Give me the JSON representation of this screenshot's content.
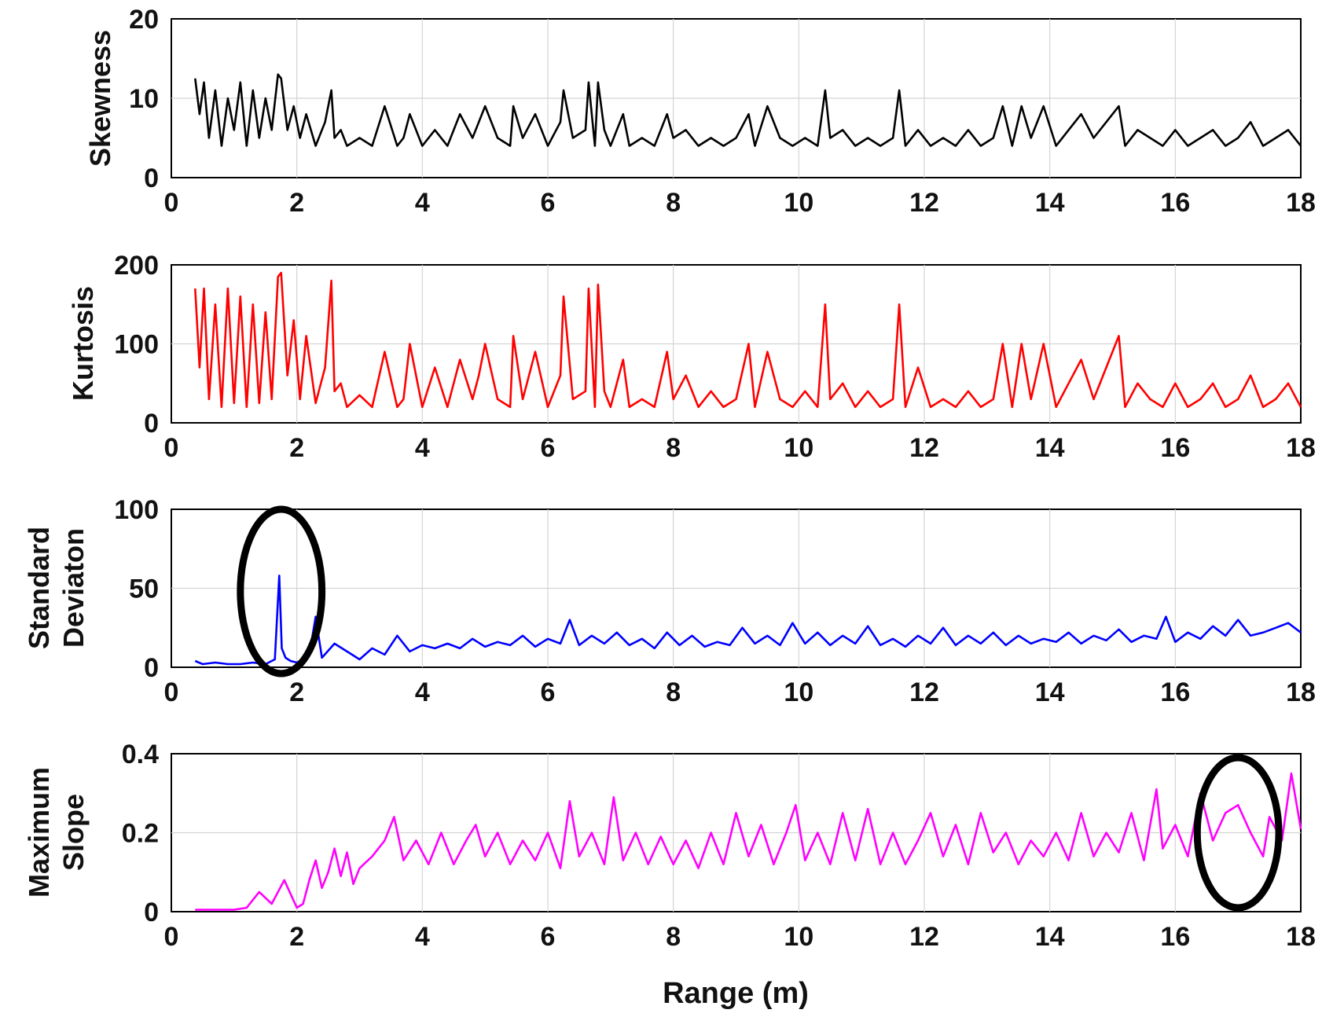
{
  "chart_data": [
    {
      "type": "line",
      "ylabel": "Skewness",
      "ylim": [
        0,
        20
      ],
      "yticks": [
        0,
        10,
        20
      ],
      "xlim": [
        0,
        18
      ],
      "xticks": [
        0,
        2,
        4,
        6,
        8,
        10,
        12,
        14,
        16,
        18
      ],
      "color": "#000000",
      "series": [
        {
          "name": "Skewness",
          "x": [
            0.38,
            0.45,
            0.52,
            0.6,
            0.7,
            0.8,
            0.9,
            1.0,
            1.1,
            1.2,
            1.3,
            1.4,
            1.5,
            1.6,
            1.7,
            1.75,
            1.85,
            1.95,
            2.05,
            2.15,
            2.3,
            2.45,
            2.55,
            2.6,
            2.7,
            2.8,
            3.0,
            3.2,
            3.4,
            3.6,
            3.7,
            3.8,
            4.0,
            4.2,
            4.4,
            4.6,
            4.8,
            4.9,
            5.0,
            5.2,
            5.4,
            5.45,
            5.6,
            5.8,
            6.0,
            6.2,
            6.25,
            6.4,
            6.6,
            6.65,
            6.75,
            6.8,
            6.9,
            7.0,
            7.2,
            7.3,
            7.5,
            7.7,
            7.9,
            8.0,
            8.2,
            8.4,
            8.6,
            8.8,
            9.0,
            9.2,
            9.3,
            9.5,
            9.7,
            9.9,
            10.1,
            10.3,
            10.42,
            10.5,
            10.7,
            10.9,
            11.1,
            11.3,
            11.5,
            11.6,
            11.7,
            11.9,
            12.1,
            12.3,
            12.5,
            12.7,
            12.9,
            13.1,
            13.25,
            13.4,
            13.55,
            13.7,
            13.9,
            14.1,
            14.3,
            14.5,
            14.7,
            14.9,
            15.1,
            15.2,
            15.4,
            15.6,
            15.8,
            16.0,
            16.2,
            16.4,
            16.6,
            16.8,
            17.0,
            17.2,
            17.4,
            17.6,
            17.8,
            18.0
          ],
          "y": [
            12.5,
            8,
            12,
            5,
            11,
            4,
            10,
            6,
            12,
            4,
            11,
            5,
            10,
            6,
            13,
            12.5,
            6,
            9,
            5,
            8,
            4,
            7,
            11,
            5,
            6,
            4,
            5,
            4,
            9,
            4,
            5,
            8,
            4,
            6,
            4,
            8,
            5,
            7,
            9,
            5,
            4,
            9,
            5,
            8,
            4,
            7,
            11,
            5,
            6,
            12,
            4,
            12,
            6,
            4,
            8,
            4,
            5,
            4,
            8,
            5,
            6,
            4,
            5,
            4,
            5,
            8,
            4,
            9,
            5,
            4,
            5,
            4,
            11,
            5,
            6,
            4,
            5,
            4,
            5,
            11,
            4,
            6,
            4,
            5,
            4,
            6,
            4,
            5,
            9,
            4,
            9,
            5,
            9,
            4,
            6,
            8,
            5,
            7,
            9,
            4,
            6,
            5,
            4,
            6,
            4,
            5,
            6,
            4,
            5,
            7,
            4,
            5,
            6,
            4
          ]
        }
      ]
    },
    {
      "type": "line",
      "ylabel": "Kurtosis",
      "ylim": [
        0,
        200
      ],
      "yticks": [
        0,
        100,
        200
      ],
      "xlim": [
        0,
        18
      ],
      "xticks": [
        0,
        2,
        4,
        6,
        8,
        10,
        12,
        14,
        16,
        18
      ],
      "color": "#ff0000",
      "series": [
        {
          "name": "Kurtosis",
          "x": [
            0.38,
            0.45,
            0.52,
            0.6,
            0.7,
            0.8,
            0.9,
            1.0,
            1.1,
            1.2,
            1.3,
            1.4,
            1.5,
            1.6,
            1.7,
            1.75,
            1.85,
            1.95,
            2.05,
            2.15,
            2.3,
            2.45,
            2.55,
            2.6,
            2.7,
            2.8,
            3.0,
            3.2,
            3.4,
            3.6,
            3.7,
            3.8,
            4.0,
            4.2,
            4.4,
            4.6,
            4.8,
            4.9,
            5.0,
            5.2,
            5.4,
            5.45,
            5.6,
            5.8,
            6.0,
            6.2,
            6.25,
            6.4,
            6.6,
            6.65,
            6.75,
            6.8,
            6.9,
            7.0,
            7.2,
            7.3,
            7.5,
            7.7,
            7.9,
            8.0,
            8.2,
            8.4,
            8.6,
            8.8,
            9.0,
            9.2,
            9.3,
            9.5,
            9.7,
            9.9,
            10.1,
            10.3,
            10.42,
            10.5,
            10.7,
            10.9,
            11.1,
            11.3,
            11.5,
            11.6,
            11.7,
            11.9,
            12.1,
            12.3,
            12.5,
            12.7,
            12.9,
            13.1,
            13.25,
            13.4,
            13.55,
            13.7,
            13.9,
            14.1,
            14.3,
            14.5,
            14.7,
            14.9,
            15.1,
            15.2,
            15.4,
            15.6,
            15.8,
            16.0,
            16.2,
            16.4,
            16.6,
            16.8,
            17.0,
            17.2,
            17.4,
            17.6,
            17.8,
            18.0
          ],
          "y": [
            170,
            70,
            170,
            30,
            150,
            20,
            170,
            25,
            160,
            20,
            150,
            25,
            140,
            30,
            185,
            190,
            60,
            130,
            30,
            110,
            25,
            70,
            180,
            40,
            50,
            20,
            35,
            20,
            90,
            20,
            30,
            100,
            20,
            70,
            20,
            80,
            30,
            60,
            100,
            30,
            20,
            110,
            30,
            90,
            20,
            60,
            160,
            30,
            40,
            170,
            20,
            175,
            40,
            20,
            80,
            20,
            30,
            20,
            90,
            30,
            60,
            20,
            40,
            20,
            30,
            100,
            20,
            90,
            30,
            20,
            40,
            20,
            150,
            30,
            50,
            20,
            40,
            20,
            30,
            150,
            20,
            70,
            20,
            30,
            20,
            40,
            20,
            30,
            100,
            20,
            100,
            30,
            100,
            20,
            50,
            80,
            30,
            70,
            110,
            20,
            50,
            30,
            20,
            50,
            20,
            30,
            50,
            20,
            30,
            60,
            20,
            30,
            50,
            20
          ]
        }
      ]
    },
    {
      "type": "line",
      "ylabel": "Standard Deviaton",
      "ylim": [
        0,
        100
      ],
      "yticks": [
        0,
        50,
        100
      ],
      "xlim": [
        0,
        18
      ],
      "xticks": [
        0,
        2,
        4,
        6,
        8,
        10,
        12,
        14,
        16,
        18
      ],
      "color": "#0000ff",
      "annotations": [
        {
          "shape": "ellipse",
          "cx": 1.75,
          "cy": 48,
          "rx": 0.65,
          "ry": 52
        }
      ],
      "series": [
        {
          "name": "Standard Deviaton",
          "x": [
            0.38,
            0.5,
            0.7,
            0.9,
            1.1,
            1.3,
            1.5,
            1.65,
            1.72,
            1.76,
            1.82,
            1.9,
            2.0,
            2.1,
            2.2,
            2.3,
            2.4,
            2.6,
            2.8,
            3.0,
            3.2,
            3.4,
            3.6,
            3.8,
            4.0,
            4.2,
            4.4,
            4.6,
            4.8,
            5.0,
            5.2,
            5.4,
            5.6,
            5.8,
            6.0,
            6.2,
            6.35,
            6.5,
            6.7,
            6.9,
            7.1,
            7.3,
            7.5,
            7.7,
            7.9,
            8.1,
            8.3,
            8.5,
            8.7,
            8.9,
            9.1,
            9.3,
            9.5,
            9.7,
            9.9,
            10.1,
            10.3,
            10.5,
            10.7,
            10.9,
            11.1,
            11.3,
            11.5,
            11.7,
            11.9,
            12.1,
            12.3,
            12.5,
            12.7,
            12.9,
            13.1,
            13.3,
            13.5,
            13.7,
            13.9,
            14.1,
            14.3,
            14.5,
            14.7,
            14.9,
            15.1,
            15.3,
            15.5,
            15.7,
            15.85,
            16.0,
            16.2,
            16.4,
            16.6,
            16.8,
            17.0,
            17.2,
            17.4,
            17.6,
            17.8,
            18.0
          ],
          "y": [
            4,
            2,
            3,
            2,
            2,
            3,
            2,
            5,
            58,
            12,
            6,
            4,
            3,
            5,
            8,
            32,
            6,
            15,
            10,
            5,
            12,
            8,
            20,
            10,
            14,
            12,
            15,
            12,
            18,
            13,
            16,
            14,
            20,
            13,
            18,
            15,
            30,
            14,
            20,
            15,
            22,
            14,
            18,
            12,
            22,
            14,
            20,
            13,
            16,
            14,
            25,
            15,
            20,
            14,
            28,
            15,
            22,
            14,
            20,
            15,
            26,
            14,
            18,
            13,
            20,
            15,
            25,
            14,
            20,
            15,
            22,
            14,
            20,
            15,
            18,
            16,
            22,
            15,
            20,
            17,
            24,
            16,
            20,
            18,
            32,
            16,
            22,
            18,
            26,
            20,
            30,
            20,
            22,
            25,
            28,
            22
          ]
        }
      ]
    },
    {
      "type": "line",
      "ylabel": "Maximum Slope",
      "xlabel": "Range (m)",
      "ylim": [
        0,
        0.4
      ],
      "yticks": [
        0,
        0.2,
        0.4
      ],
      "xlim": [
        0,
        18
      ],
      "xticks": [
        0,
        2,
        4,
        6,
        8,
        10,
        12,
        14,
        16,
        18
      ],
      "color": "#ff00ff",
      "annotations": [
        {
          "shape": "ellipse",
          "cx": 17.0,
          "cy": 0.2,
          "rx": 0.65,
          "ry": 0.19
        }
      ],
      "series": [
        {
          "name": "Maximum Slope",
          "x": [
            0.38,
            0.6,
            0.8,
            1.0,
            1.2,
            1.4,
            1.6,
            1.8,
            2.0,
            2.1,
            2.2,
            2.3,
            2.4,
            2.5,
            2.6,
            2.7,
            2.8,
            2.9,
            3.0,
            3.2,
            3.4,
            3.55,
            3.7,
            3.9,
            4.1,
            4.3,
            4.5,
            4.7,
            4.85,
            5.0,
            5.2,
            5.4,
            5.6,
            5.8,
            6.0,
            6.2,
            6.35,
            6.5,
            6.7,
            6.9,
            7.05,
            7.2,
            7.4,
            7.6,
            7.8,
            8.0,
            8.2,
            8.4,
            8.6,
            8.8,
            9.0,
            9.2,
            9.4,
            9.6,
            9.8,
            9.95,
            10.1,
            10.3,
            10.5,
            10.7,
            10.9,
            11.1,
            11.3,
            11.5,
            11.7,
            11.9,
            12.1,
            12.3,
            12.5,
            12.7,
            12.9,
            13.1,
            13.3,
            13.5,
            13.7,
            13.9,
            14.1,
            14.3,
            14.5,
            14.7,
            14.9,
            15.1,
            15.3,
            15.5,
            15.7,
            15.8,
            16.0,
            16.2,
            16.4,
            16.6,
            16.8,
            17.0,
            17.2,
            17.4,
            17.5,
            17.7,
            17.85,
            18.0
          ],
          "y": [
            0.005,
            0.005,
            0.005,
            0.005,
            0.01,
            0.05,
            0.02,
            0.08,
            0.01,
            0.02,
            0.08,
            0.13,
            0.06,
            0.1,
            0.16,
            0.09,
            0.15,
            0.07,
            0.11,
            0.14,
            0.18,
            0.24,
            0.13,
            0.18,
            0.12,
            0.2,
            0.12,
            0.18,
            0.22,
            0.14,
            0.2,
            0.12,
            0.18,
            0.13,
            0.2,
            0.11,
            0.28,
            0.14,
            0.2,
            0.12,
            0.29,
            0.13,
            0.2,
            0.12,
            0.19,
            0.12,
            0.18,
            0.11,
            0.2,
            0.12,
            0.25,
            0.14,
            0.22,
            0.12,
            0.2,
            0.27,
            0.13,
            0.2,
            0.12,
            0.25,
            0.13,
            0.26,
            0.12,
            0.2,
            0.12,
            0.18,
            0.25,
            0.14,
            0.22,
            0.12,
            0.25,
            0.15,
            0.2,
            0.12,
            0.18,
            0.14,
            0.2,
            0.13,
            0.25,
            0.14,
            0.2,
            0.15,
            0.25,
            0.13,
            0.31,
            0.16,
            0.22,
            0.14,
            0.3,
            0.18,
            0.25,
            0.27,
            0.2,
            0.14,
            0.24,
            0.18,
            0.35,
            0.21
          ]
        }
      ]
    }
  ]
}
